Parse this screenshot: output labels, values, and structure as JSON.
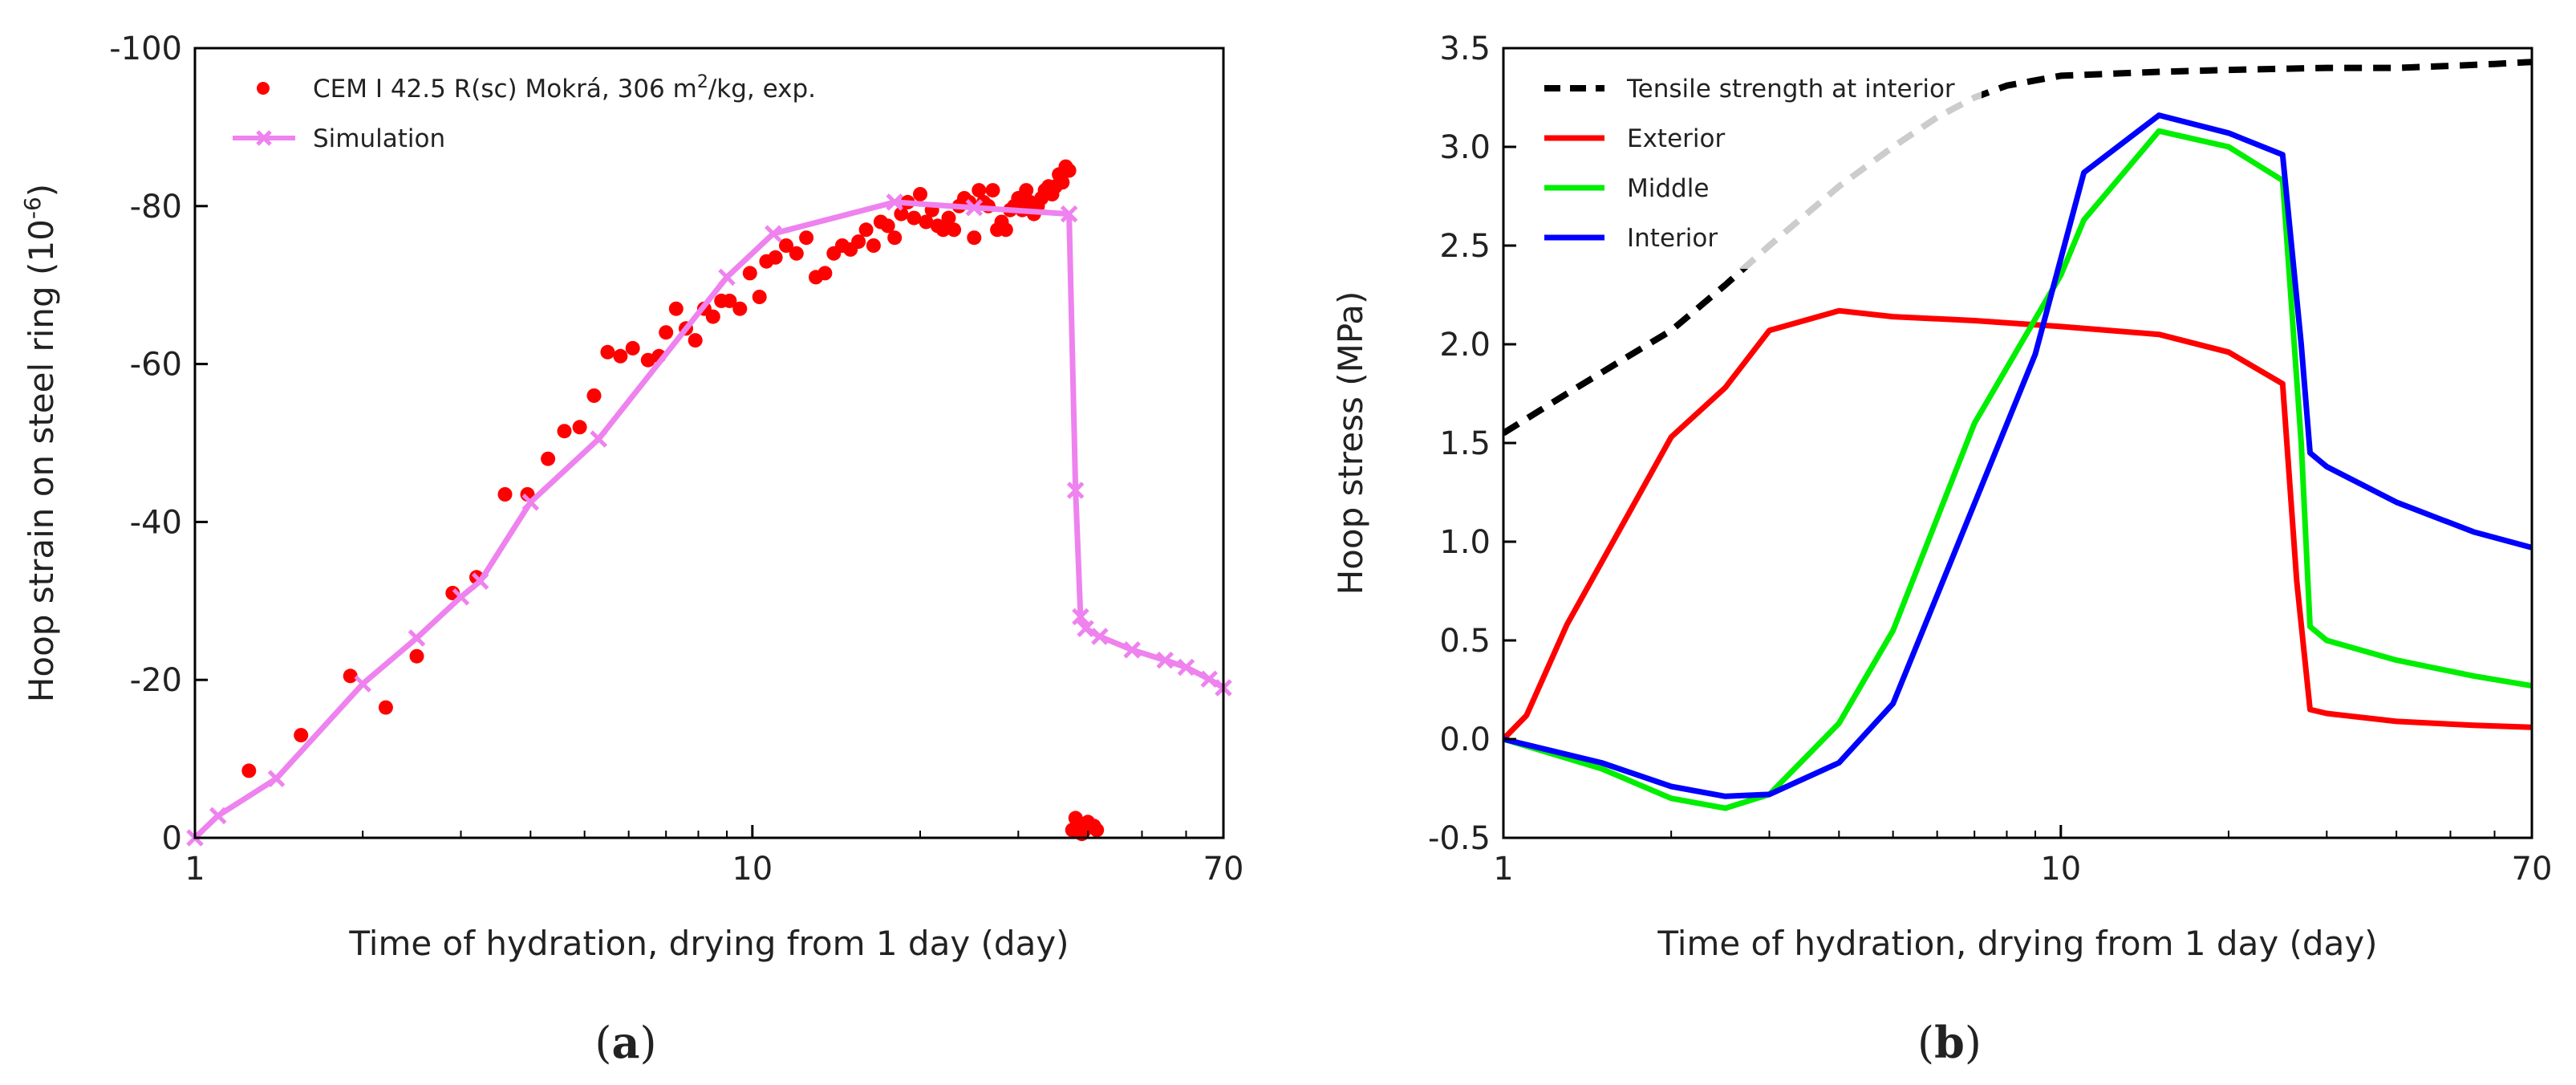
{
  "chart_data": [
    {
      "type": "line",
      "panel_label": "a",
      "xscale": "log",
      "xlabel": "Time of hydration, drying from 1 day (day)",
      "ylabel_main": "Hoop strain on steel ring (10",
      "ylabel_sup": "-6",
      "ylabel_end": ")",
      "xlim": [
        1,
        70
      ],
      "ylim": [
        0,
        -100
      ],
      "x_ticks": [
        1,
        10,
        70
      ],
      "x_tick_labels": [
        "1",
        "10",
        "70"
      ],
      "y_ticks": [
        0,
        -20,
        -40,
        -60,
        -80,
        -100
      ],
      "y_tick_labels": [
        "0",
        "-20",
        "-40",
        "-60",
        "-80",
        "-100"
      ],
      "grid": false,
      "legend_position": "top-left",
      "legend": {
        "exp_label_main": "CEM I 42.5 R(sc) Mokrá, 306 m",
        "exp_label_sup": "2",
        "exp_label_end": "/kg, exp.",
        "sim_label": "Simulation"
      },
      "series": [
        {
          "name": "CEM I 42.5 R(sc) Mokrá, 306 m2/kg, exp.",
          "kind": "scatter",
          "color": "#ff0000",
          "points": [
            [
              1.25,
              -8.5
            ],
            [
              1.55,
              -13
            ],
            [
              1.9,
              -20.5
            ],
            [
              2.2,
              -16.5
            ],
            [
              2.5,
              -23
            ],
            [
              2.9,
              -31
            ],
            [
              3.2,
              -33
            ],
            [
              3.6,
              -43.5
            ],
            [
              3.95,
              -43.5
            ],
            [
              4.3,
              -48
            ],
            [
              4.6,
              -51.5
            ],
            [
              4.9,
              -52
            ],
            [
              5.2,
              -56
            ],
            [
              5.5,
              -61.5
            ],
            [
              5.8,
              -61
            ],
            [
              6.1,
              -62
            ],
            [
              6.5,
              -60.5
            ],
            [
              6.8,
              -61
            ],
            [
              7.0,
              -64
            ],
            [
              7.3,
              -67
            ],
            [
              7.6,
              -64.5
            ],
            [
              7.9,
              -63
            ],
            [
              8.2,
              -67
            ],
            [
              8.5,
              -66
            ],
            [
              8.8,
              -68
            ],
            [
              9.1,
              -68
            ],
            [
              9.5,
              -67
            ],
            [
              9.9,
              -71.5
            ],
            [
              10.3,
              -68.5
            ],
            [
              10.6,
              -73
            ],
            [
              11.0,
              -73.5
            ],
            [
              11.5,
              -75
            ],
            [
              12.0,
              -74
            ],
            [
              12.5,
              -76
            ],
            [
              13.0,
              -71
            ],
            [
              13.5,
              -71.5
            ],
            [
              14.0,
              -74
            ],
            [
              14.5,
              -75
            ],
            [
              15.0,
              -74.5
            ],
            [
              15.5,
              -75.5
            ],
            [
              16.0,
              -77
            ],
            [
              16.5,
              -75
            ],
            [
              17.0,
              -78
            ],
            [
              17.5,
              -77.5
            ],
            [
              18.0,
              -76
            ],
            [
              18.5,
              -79
            ],
            [
              19.0,
              -80.5
            ],
            [
              19.5,
              -78.5
            ],
            [
              20.0,
              -81.5
            ],
            [
              20.5,
              -78
            ],
            [
              21.0,
              -79.5
            ],
            [
              21.5,
              -77.5
            ],
            [
              22.0,
              -77
            ],
            [
              22.5,
              -78.5
            ],
            [
              23.0,
              -77
            ],
            [
              23.5,
              -80
            ],
            [
              24.0,
              -81
            ],
            [
              24.5,
              -80.5
            ],
            [
              25.0,
              -76
            ],
            [
              25.5,
              -82
            ],
            [
              26.0,
              -80.5
            ],
            [
              26.5,
              -80
            ],
            [
              27.0,
              -82
            ],
            [
              27.5,
              -77
            ],
            [
              28.0,
              -78
            ],
            [
              28.5,
              -77
            ],
            [
              29.0,
              -79.5
            ],
            [
              29.5,
              -80
            ],
            [
              30.0,
              -81
            ],
            [
              30.5,
              -79.5
            ],
            [
              31.0,
              -82
            ],
            [
              31.5,
              -80.5
            ],
            [
              32.0,
              -79
            ],
            [
              32.5,
              -80
            ],
            [
              33.0,
              -81
            ],
            [
              33.5,
              -82
            ],
            [
              34.0,
              -82.5
            ],
            [
              34.5,
              -81.5
            ],
            [
              35.0,
              -82.5
            ],
            [
              35.5,
              -84
            ],
            [
              36.0,
              -83
            ],
            [
              36.5,
              -85
            ],
            [
              37.0,
              -84.5
            ],
            [
              37.5,
              -1
            ],
            [
              38.0,
              -2.5
            ],
            [
              38.5,
              -1.5
            ],
            [
              39.0,
              -0.5
            ],
            [
              39.5,
              -1
            ],
            [
              40.0,
              -2
            ],
            [
              40.5,
              -1.5
            ],
            [
              41.0,
              -1.5
            ],
            [
              41.5,
              -1
            ]
          ]
        },
        {
          "name": "Simulation",
          "kind": "line",
          "color": "#ee82ee",
          "points": [
            [
              1.0,
              0
            ],
            [
              1.1,
              -2.8
            ],
            [
              1.4,
              -7.5
            ],
            [
              2.0,
              -19.5
            ],
            [
              2.5,
              -25.3
            ],
            [
              3.0,
              -30.5
            ],
            [
              3.25,
              -32.5
            ],
            [
              4.0,
              -42.5
            ],
            [
              5.3,
              -50.5
            ],
            [
              9.0,
              -71
            ],
            [
              10.9,
              -76.5
            ],
            [
              18.0,
              -80.5
            ],
            [
              25.0,
              -79.8
            ],
            [
              37.0,
              -79
            ],
            [
              38.0,
              -44
            ],
            [
              38.8,
              -28
            ],
            [
              39.6,
              -26.5
            ],
            [
              42.0,
              -25.5
            ],
            [
              48.0,
              -23.8
            ],
            [
              55.0,
              -22.5
            ],
            [
              60.0,
              -21.6
            ],
            [
              66.0,
              -20.1
            ],
            [
              70.0,
              -19
            ]
          ]
        }
      ]
    },
    {
      "type": "line",
      "panel_label": "b",
      "xscale": "log",
      "xlabel": "Time of hydration, drying from 1 day (day)",
      "ylabel": "Hoop stress (MPa)",
      "xlim": [
        1,
        70
      ],
      "ylim": [
        -0.5,
        3.5
      ],
      "x_ticks": [
        1,
        10,
        70
      ],
      "x_tick_labels": [
        "1",
        "10",
        "70"
      ],
      "y_ticks": [
        -0.5,
        0,
        0.5,
        1,
        1.5,
        2,
        2.5,
        3,
        3.5
      ],
      "y_tick_labels": [
        "-0.5",
        "0.0",
        "0.5",
        "1.0",
        "1.5",
        "2.0",
        "2.5",
        "3.0",
        "3.5"
      ],
      "grid": false,
      "legend_position": "top-left",
      "series": [
        {
          "name": "Tensile strength at interior",
          "kind": "line",
          "dashed": true,
          "color": "#000000",
          "points": [
            [
              1.0,
              1.55
            ],
            [
              1.3,
              1.75
            ],
            [
              1.7,
              1.95
            ],
            [
              2.0,
              2.07
            ],
            [
              2.5,
              2.3
            ],
            [
              3.0,
              2.5
            ],
            [
              4.0,
              2.8
            ],
            [
              5.0,
              3.0
            ],
            [
              6.0,
              3.15
            ],
            [
              7.0,
              3.25
            ],
            [
              8.0,
              3.31
            ],
            [
              10.0,
              3.36
            ],
            [
              15.0,
              3.38
            ],
            [
              20.0,
              3.39
            ],
            [
              30.0,
              3.4
            ],
            [
              40.0,
              3.4
            ],
            [
              50.0,
              3.41
            ],
            [
              60.0,
              3.42
            ],
            [
              70.0,
              3.43
            ]
          ]
        },
        {
          "name": "Exterior",
          "kind": "line",
          "color": "#ff0000",
          "points": [
            [
              1.0,
              0.0
            ],
            [
              1.1,
              0.12
            ],
            [
              1.3,
              0.58
            ],
            [
              2.0,
              1.53
            ],
            [
              2.5,
              1.78
            ],
            [
              3.0,
              2.07
            ],
            [
              4.0,
              2.17
            ],
            [
              5.0,
              2.14
            ],
            [
              7.0,
              2.12
            ],
            [
              10.0,
              2.09
            ],
            [
              15.0,
              2.05
            ],
            [
              20.0,
              1.96
            ],
            [
              25.0,
              1.8
            ],
            [
              26.5,
              0.8
            ],
            [
              28.0,
              0.15
            ],
            [
              30.0,
              0.13
            ],
            [
              40.0,
              0.09
            ],
            [
              55.0,
              0.07
            ],
            [
              70.0,
              0.06
            ]
          ]
        },
        {
          "name": "Middle",
          "kind": "line",
          "color": "#00ee00",
          "points": [
            [
              1.0,
              0.0
            ],
            [
              1.5,
              -0.15
            ],
            [
              2.0,
              -0.3
            ],
            [
              2.5,
              -0.35
            ],
            [
              3.0,
              -0.28
            ],
            [
              4.0,
              0.08
            ],
            [
              5.0,
              0.55
            ],
            [
              7.0,
              1.6
            ],
            [
              10.0,
              2.35
            ],
            [
              11.0,
              2.63
            ],
            [
              15.0,
              3.08
            ],
            [
              20.0,
              3.0
            ],
            [
              25.0,
              2.83
            ],
            [
              27.0,
              1.5
            ],
            [
              28.0,
              0.57
            ],
            [
              30.0,
              0.5
            ],
            [
              40.0,
              0.4
            ],
            [
              55.0,
              0.32
            ],
            [
              70.0,
              0.27
            ]
          ]
        },
        {
          "name": "Interior",
          "kind": "line",
          "color": "#0000ff",
          "points": [
            [
              1.0,
              0.0
            ],
            [
              1.5,
              -0.12
            ],
            [
              2.0,
              -0.24
            ],
            [
              2.5,
              -0.29
            ],
            [
              3.0,
              -0.28
            ],
            [
              4.0,
              -0.12
            ],
            [
              5.0,
              0.18
            ],
            [
              9.0,
              1.95
            ],
            [
              11.0,
              2.87
            ],
            [
              15.0,
              3.16
            ],
            [
              20.0,
              3.07
            ],
            [
              25.0,
              2.96
            ],
            [
              27.0,
              2.0
            ],
            [
              28.0,
              1.45
            ],
            [
              30.0,
              1.38
            ],
            [
              40.0,
              1.2
            ],
            [
              55.0,
              1.05
            ],
            [
              70.0,
              0.97
            ]
          ]
        }
      ]
    }
  ]
}
